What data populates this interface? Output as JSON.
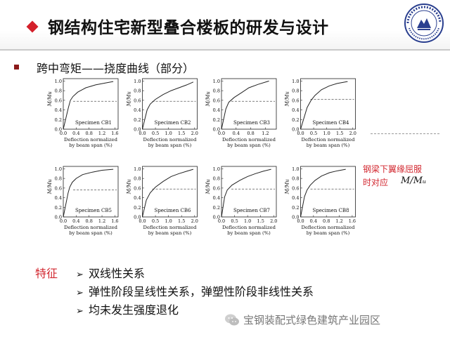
{
  "slide": {
    "title": "钢结构住宅新型叠合楼板的研发与设计",
    "subtitle": "跨中弯矩——挠度曲线（部分）",
    "logo": {
      "name": "university-seal",
      "accent": "#2a3f8f"
    },
    "annotation": {
      "line1": "钢梁下翼缘屈服",
      "line2": "时对应",
      "math": "M/Mᵤ"
    },
    "features": {
      "label": "特征",
      "items": [
        "双线性关系",
        "弹性阶段呈线性关系，弹塑性阶段非线性关系",
        "均未发生强度退化"
      ]
    },
    "watermark": "宝钢装配式绿色建筑产业园区"
  },
  "colors": {
    "accent_red": "#d4202b",
    "annotation_red": "#d2272f",
    "curve": "#222222",
    "dash": "#555555"
  },
  "chart_data": [
    {
      "type": "line",
      "title": "Specimen CB1",
      "xlabel": "Deflection normalized by beam span (%)",
      "ylabel": "M/Mu",
      "xticks": [
        0.0,
        0.4,
        0.8,
        1.2,
        1.6
      ],
      "yticks": [
        0.0,
        0.2,
        0.4,
        0.6,
        0.8,
        1.0
      ],
      "xlim": [
        0,
        1.7
      ],
      "ylim": [
        0,
        1.05
      ],
      "yield_ratio": 0.58,
      "x": [
        0,
        0.16,
        0.22,
        0.3,
        0.45,
        0.7,
        1.0,
        1.3,
        1.55
      ],
      "y": [
        0,
        0.45,
        0.6,
        0.68,
        0.77,
        0.86,
        0.92,
        0.96,
        0.99
      ]
    },
    {
      "type": "line",
      "title": "Specimen CB2",
      "xlabel": "Deflection normalized by beam span (%)",
      "ylabel": "M/Mu",
      "xticks": [
        0.0,
        0.5,
        1.0,
        1.5,
        2.0
      ],
      "yticks": [
        0.0,
        0.2,
        0.4,
        0.6,
        0.8,
        1.0
      ],
      "xlim": [
        0,
        2.1
      ],
      "ylim": [
        0,
        1.05
      ],
      "yield_ratio": 0.58,
      "x": [
        0,
        0.18,
        0.3,
        0.5,
        0.8,
        1.1,
        1.4,
        1.7,
        1.95
      ],
      "y": [
        0,
        0.4,
        0.52,
        0.62,
        0.72,
        0.8,
        0.86,
        0.92,
        0.98
      ]
    },
    {
      "type": "line",
      "title": "Specimen CB3",
      "xlabel": "Deflection normalized by beam span (%)",
      "ylabel": "M/Mu",
      "xticks": [
        0.0,
        0.4,
        0.8,
        1.2
      ],
      "yticks": [
        0.0,
        0.2,
        0.4,
        0.6,
        0.8,
        1.0
      ],
      "xlim": [
        0,
        1.5
      ],
      "ylim": [
        0,
        1.05
      ],
      "yield_ratio": 0.58,
      "x": [
        0,
        0.12,
        0.2,
        0.35,
        0.55,
        0.75,
        1.0,
        1.3
      ],
      "y": [
        0,
        0.42,
        0.56,
        0.66,
        0.76,
        0.86,
        0.93,
        1.0
      ]
    },
    {
      "type": "line",
      "title": "Specimen CB4",
      "xlabel": "Deflection normalized by beam span (%)",
      "ylabel": "M/Mu",
      "xticks": [
        0.0,
        0.5,
        1.0,
        1.5,
        2.0
      ],
      "yticks": [
        0.0,
        0.2,
        0.4,
        0.6,
        0.8,
        1.0
      ],
      "xlim": [
        0,
        2.1
      ],
      "ylim": [
        0,
        1.05
      ],
      "yield_ratio": 0.62,
      "x": [
        0,
        0.25,
        0.4,
        0.55,
        0.8,
        1.1,
        1.4,
        1.8
      ],
      "y": [
        0,
        0.45,
        0.6,
        0.7,
        0.82,
        0.9,
        0.95,
        0.99
      ]
    },
    {
      "type": "line",
      "title": "Specimen CB5",
      "xlabel": "Deflection normalized by beam span (%)",
      "ylabel": "M/Mu",
      "xticks": [
        0.0,
        0.4,
        0.8,
        1.2,
        1.6
      ],
      "yticks": [
        0.0,
        0.2,
        0.4,
        0.6,
        0.8,
        1.0
      ],
      "xlim": [
        0,
        1.7
      ],
      "ylim": [
        0,
        1.05
      ],
      "yield_ratio": 0.56,
      "x": [
        0,
        0.15,
        0.2,
        0.28,
        0.4,
        0.6,
        0.9,
        1.2,
        1.55
      ],
      "y": [
        0,
        0.5,
        0.62,
        0.72,
        0.8,
        0.88,
        0.93,
        0.97,
        0.99
      ]
    },
    {
      "type": "line",
      "title": "Specimen CB6",
      "xlabel": "Deflection normalized by beam span (%)",
      "ylabel": "M/Mu",
      "xticks": [
        0.0,
        0.5,
        1.0,
        1.5,
        2.0
      ],
      "yticks": [
        0.0,
        0.2,
        0.4,
        0.6,
        0.8,
        1.0
      ],
      "xlim": [
        0,
        2.1
      ],
      "ylim": [
        0,
        1.05
      ],
      "yield_ratio": 0.58,
      "x": [
        0,
        0.15,
        0.3,
        0.5,
        0.8,
        1.1,
        1.4,
        1.7,
        1.95
      ],
      "y": [
        0,
        0.35,
        0.5,
        0.62,
        0.74,
        0.84,
        0.9,
        0.95,
        0.99
      ]
    },
    {
      "type": "line",
      "title": "Specimen CB7",
      "xlabel": "Deflection normalized by beam span (%)",
      "ylabel": "M/Mu",
      "xticks": [
        0.0,
        0.5,
        1.0,
        1.5,
        2.0
      ],
      "yticks": [
        0.0,
        0.2,
        0.4,
        0.6,
        0.8,
        1.0
      ],
      "xlim": [
        0,
        2.1
      ],
      "ylim": [
        0,
        1.05
      ],
      "yield_ratio": 0.58,
      "x": [
        0,
        0.12,
        0.22,
        0.4,
        0.7,
        1.0,
        1.3,
        1.6,
        1.9
      ],
      "y": [
        0,
        0.42,
        0.56,
        0.66,
        0.76,
        0.84,
        0.9,
        0.95,
        0.99
      ]
    },
    {
      "type": "line",
      "title": "Specimen CB8",
      "xlabel": "Deflection normalized by beam span (%)",
      "ylabel": "M/Mu",
      "xticks": [
        0.0,
        0.4,
        0.8,
        1.2,
        1.6
      ],
      "yticks": [
        0.0,
        0.2,
        0.4,
        0.6,
        0.8,
        1.0
      ],
      "xlim": [
        0,
        1.7
      ],
      "ylim": [
        0,
        1.05
      ],
      "yield_ratio": 0.58,
      "x": [
        0,
        0.12,
        0.2,
        0.3,
        0.45,
        0.65,
        0.9,
        1.15,
        1.4
      ],
      "y": [
        0,
        0.42,
        0.56,
        0.66,
        0.76,
        0.85,
        0.92,
        0.96,
        0.99
      ]
    }
  ]
}
